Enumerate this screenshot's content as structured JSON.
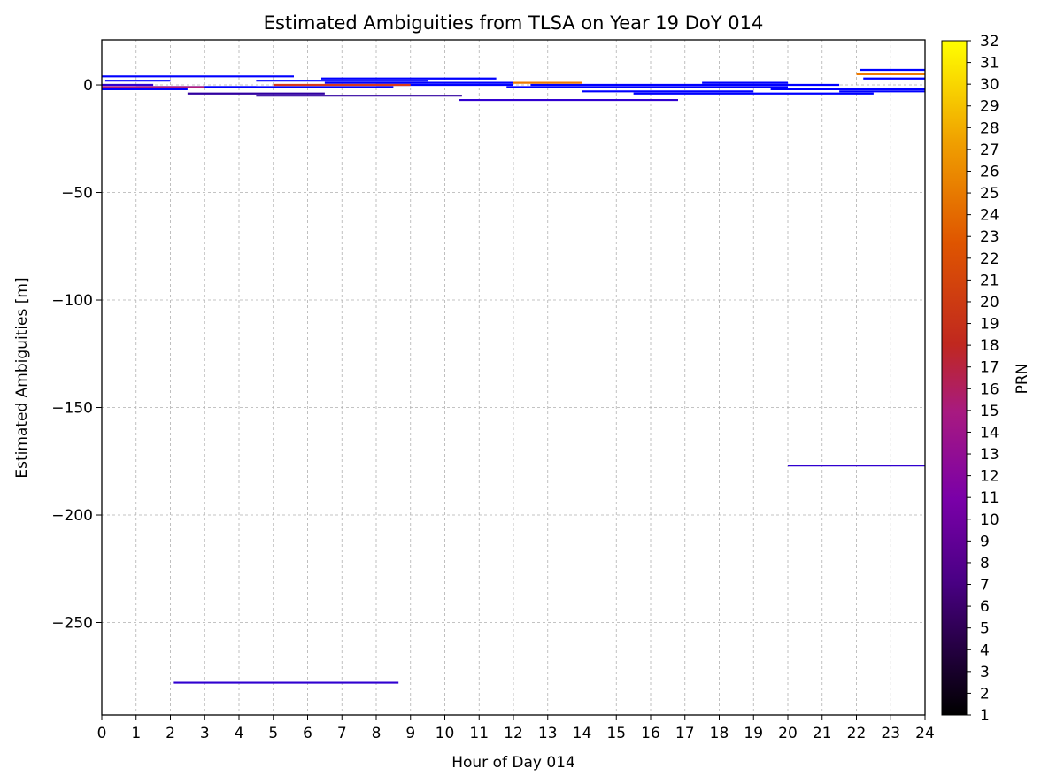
{
  "chart_data": {
    "type": "line",
    "title": "Estimated Ambiguities from TLSA on Year 19 DoY 014",
    "xlabel": "Hour of Day 014",
    "ylabel": "Estimated Ambiguities [m]",
    "xlim": [
      0,
      24
    ],
    "ylim": [
      -293,
      21
    ],
    "x_ticks": [
      0,
      1,
      2,
      3,
      4,
      5,
      6,
      7,
      8,
      9,
      10,
      11,
      12,
      13,
      14,
      15,
      16,
      17,
      18,
      19,
      20,
      21,
      22,
      23,
      24
    ],
    "y_ticks": [
      0,
      -50,
      -100,
      -150,
      -200,
      -250
    ],
    "y_tick_labels": [
      "0",
      "−50",
      "−100",
      "−150",
      "−200",
      "−250"
    ],
    "grid": true,
    "colorbar": {
      "label": "PRN",
      "min": 1,
      "max": 32,
      "ticks": [
        "1",
        "2",
        "3",
        "4",
        "5",
        "6",
        "7",
        "8",
        "9",
        "10",
        "11",
        "12",
        "13",
        "14",
        "15",
        "16",
        "17",
        "18",
        "19",
        "20",
        "21",
        "22",
        "23",
        "24",
        "25",
        "26",
        "27",
        "28",
        "29",
        "30",
        "31",
        "32"
      ],
      "colormap": "gnuplot",
      "colors": [
        "#000000",
        "#7a00a8",
        "#b01c7a",
        "#d8381c",
        "#ef7a00",
        "#ffff00"
      ]
    },
    "series": [
      {
        "x": [
          0.0,
          5.6
        ],
        "y": [
          4,
          4
        ],
        "color": "#0000ff"
      },
      {
        "x": [
          0.1,
          2.0
        ],
        "y": [
          2,
          2
        ],
        "color": "#0000ff"
      },
      {
        "x": [
          0.0,
          2.5
        ],
        "y": [
          -2,
          -2
        ],
        "color": "#0000ff"
      },
      {
        "x": [
          0.0,
          1.5
        ],
        "y": [
          0,
          0
        ],
        "color": "#3000d0"
      },
      {
        "x": [
          1.0,
          4.5
        ],
        "y": [
          -1,
          -1
        ],
        "color": "#0000ff"
      },
      {
        "x": [
          2.5,
          6.5
        ],
        "y": [
          -4,
          -4
        ],
        "color": "#3000a0"
      },
      {
        "x": [
          4.5,
          10.5
        ],
        "y": [
          -5,
          -5
        ],
        "color": "#3000a0"
      },
      {
        "x": [
          3.0,
          8.5
        ],
        "y": [
          -1,
          -1
        ],
        "color": "#0000ff"
      },
      {
        "x": [
          4.5,
          9.5
        ],
        "y": [
          2,
          2
        ],
        "color": "#0000ff"
      },
      {
        "x": [
          6.4,
          11.5
        ],
        "y": [
          3,
          3
        ],
        "color": "#0000ff"
      },
      {
        "x": [
          6.5,
          12.0
        ],
        "y": [
          1,
          1
        ],
        "color": "#0000ff"
      },
      {
        "x": [
          8.0,
          12.0
        ],
        "y": [
          0,
          0
        ],
        "color": "#0000ff"
      },
      {
        "x": [
          10.4,
          16.8
        ],
        "y": [
          -7,
          -7
        ],
        "color": "#3000d0"
      },
      {
        "x": [
          11.8,
          20.0
        ],
        "y": [
          -1,
          -1
        ],
        "color": "#0000ff"
      },
      {
        "x": [
          12.5,
          21.5
        ],
        "y": [
          0,
          0
        ],
        "color": "#0000ff"
      },
      {
        "x": [
          14.0,
          19.0
        ],
        "y": [
          -3,
          -3
        ],
        "color": "#0000ff"
      },
      {
        "x": [
          15.5,
          22.5
        ],
        "y": [
          -4,
          -4
        ],
        "color": "#0000ff"
      },
      {
        "x": [
          17.5,
          20.0
        ],
        "y": [
          1,
          1
        ],
        "color": "#0000ff"
      },
      {
        "x": [
          19.5,
          24.0
        ],
        "y": [
          -2,
          -2
        ],
        "color": "#0000ff"
      },
      {
        "x": [
          21.5,
          24.0
        ],
        "y": [
          -3,
          -3
        ],
        "color": "#0000ff"
      },
      {
        "x": [
          22.1,
          24.0
        ],
        "y": [
          7,
          7
        ],
        "color": "#0000ff"
      },
      {
        "x": [
          22.2,
          24.0
        ],
        "y": [
          3,
          3
        ],
        "color": "#0000ff"
      },
      {
        "x": [
          0.0,
          3.0
        ],
        "y": [
          -1,
          -1
        ],
        "color": "#b01c7a"
      },
      {
        "x": [
          5.0,
          9.0
        ],
        "y": [
          0,
          0
        ],
        "color": "#d8381c"
      },
      {
        "x": [
          12.0,
          14.0
        ],
        "y": [
          1,
          1
        ],
        "color": "#ef7a00"
      },
      {
        "x": [
          22.0,
          24.0
        ],
        "y": [
          5,
          5
        ],
        "color": "#ef7a00"
      },
      {
        "x": [
          20.0,
          24.0
        ],
        "y": [
          -177,
          -177
        ],
        "color": "#3000d0"
      },
      {
        "x": [
          2.1,
          8.65
        ],
        "y": [
          -278,
          -278
        ],
        "color": "#3000d0"
      }
    ]
  }
}
